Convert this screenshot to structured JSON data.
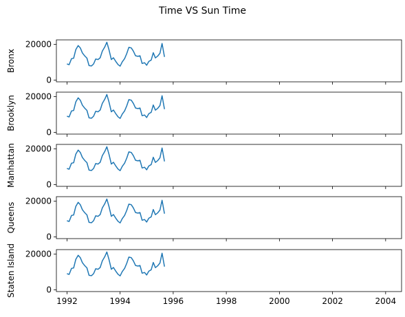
{
  "figure": {
    "title": "Time VS Sun Time"
  },
  "chart_data": {
    "type": "line",
    "title": "Time VS Sun Time",
    "shared_x": true,
    "x_ticks": [
      "1992",
      "1994",
      "1996",
      "1998",
      "2000",
      "2002",
      "2004"
    ],
    "xlim": [
      1991.6,
      2004.6
    ],
    "ylim": [
      -1000,
      22500
    ],
    "y_ticks": [
      "0",
      "20000"
    ],
    "line_color": "#1f77b4",
    "grid": false,
    "series_x": [
      1992.0,
      1992.08,
      1992.17,
      1992.25,
      1992.33,
      1992.42,
      1992.5,
      1992.58,
      1992.67,
      1992.75,
      1992.83,
      1992.92,
      1993.0,
      1993.08,
      1993.17,
      1993.25,
      1993.33,
      1993.42,
      1993.5,
      1993.58,
      1993.67,
      1993.75,
      1993.83,
      1993.92,
      1994.0,
      1994.08,
      1994.17,
      1994.25,
      1994.33,
      1994.42,
      1994.5,
      1994.58,
      1994.67,
      1994.75,
      1994.83,
      1994.92,
      1995.0,
      1995.08,
      1995.17,
      1995.25,
      1995.33,
      1995.42,
      1995.5,
      1995.58,
      1995.67
    ],
    "series_y": [
      9000,
      8600,
      12000,
      12200,
      17000,
      19300,
      18000,
      15200,
      13500,
      12300,
      8100,
      7900,
      9000,
      11800,
      11500,
      12500,
      16200,
      18500,
      21200,
      17000,
      11500,
      12500,
      10600,
      8700,
      7800,
      10200,
      12000,
      14800,
      18300,
      18000,
      16200,
      13600,
      13300,
      13600,
      9300,
      9700,
      8300,
      10400,
      11200,
      15300,
      12400,
      13500,
      15000,
      20500,
      13000
    ],
    "subplots": [
      {
        "ylabel": "Bronx"
      },
      {
        "ylabel": "Brooklyn"
      },
      {
        "ylabel": "Manhattan"
      },
      {
        "ylabel": "Queens"
      },
      {
        "ylabel": "Staten Island"
      }
    ]
  }
}
